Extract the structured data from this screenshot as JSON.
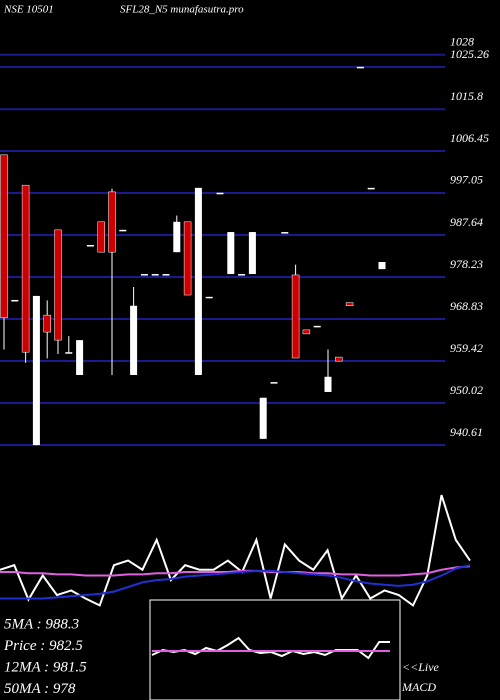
{
  "chart_data": [
    {
      "type": "candlestick",
      "subtitle": "NSE 10501",
      "title": "SFL28_N5 munafasutra.pro",
      "ylim": [
        939.5,
        1031.31
      ],
      "yticks": [
        1028,
        1025.26,
        1015.8,
        1006.45,
        997.05,
        987.64,
        978.23,
        968.83,
        959.42,
        950.02,
        940.61
      ],
      "grid": true,
      "grid_color": "#1a1a8c",
      "up_color": "#ffffff",
      "down_color": "#cc0000",
      "open": [
        1005.6,
        973.1,
        998.8,
        940.6,
        969.7,
        988.8,
        961.4,
        956.3,
        985.4,
        990.6,
        997.3,
        988.8,
        956.3,
        978.9,
        978.9,
        978.9,
        983.8,
        990.6,
        956.3,
        973.8,
        997.1,
        978.9,
        978.9,
        978.9,
        942.0,
        954.7,
        988.3,
        978.7,
        966.4,
        967.3,
        952.5,
        960.3,
        972.5,
        1025.3,
        998.2,
        980.0
      ],
      "high": [
        1005.6,
        973.1,
        998.8,
        974.0,
        973.0,
        988.8,
        965.0,
        964.1,
        985.4,
        990.6,
        998.0,
        988.8,
        976.0,
        978.9,
        978.9,
        978.9,
        992.0,
        990.6,
        998.2,
        973.8,
        997.1,
        988.3,
        978.9,
        988.3,
        951.2,
        954.7,
        988.3,
        981.0,
        966.4,
        967.3,
        962.0,
        960.3,
        972.5,
        1025.3,
        998.2,
        981.6
      ],
      "low": [
        962.0,
        973.1,
        959.0,
        940.6,
        960.0,
        961.0,
        961.4,
        956.3,
        985.4,
        983.8,
        956.3,
        988.8,
        956.3,
        978.9,
        978.9,
        978.9,
        983.8,
        974.2,
        956.3,
        973.8,
        997.1,
        978.9,
        978.9,
        978.9,
        942.0,
        954.7,
        988.3,
        960.1,
        965.5,
        967.3,
        952.5,
        959.4,
        971.8,
        1025.3,
        998.2,
        980.0
      ],
      "close": [
        969.1,
        973.1,
        961.4,
        974.0,
        965.9,
        964.1,
        961.4,
        964.1,
        985.4,
        983.8,
        983.8,
        988.8,
        971.8,
        978.9,
        978.9,
        978.9,
        990.6,
        974.2,
        998.2,
        973.8,
        997.1,
        988.3,
        978.9,
        988.3,
        951.2,
        954.7,
        988.3,
        960.1,
        965.5,
        967.3,
        955.9,
        959.4,
        971.8,
        1025.3,
        998.2,
        981.6
      ]
    },
    {
      "type": "line",
      "ylim": [
        0,
        100
      ],
      "annotations": [
        "5MA : 988.3",
        "Price : 982.5",
        "12MA : 981.5",
        "50MA : 978"
      ],
      "series": [
        {
          "color": "#ffffff",
          "values": [
            35,
            39,
            9,
            30,
            13,
            17,
            10,
            4,
            39,
            43,
            35,
            61,
            26,
            39,
            35,
            35,
            43,
            33,
            61,
            10,
            57,
            43,
            35,
            52,
            10,
            30,
            10,
            17,
            13,
            4,
            30,
            100,
            61,
            43
          ]
        },
        {
          "color": "#e060e0",
          "values": [
            33,
            33,
            32,
            32,
            31,
            31,
            30,
            30,
            30,
            31,
            31,
            32,
            32,
            33,
            33,
            33,
            33,
            34,
            34,
            33,
            33,
            33,
            32,
            32,
            31,
            31,
            30,
            30,
            30,
            31,
            32,
            35,
            37,
            38
          ]
        },
        {
          "color": "#2030d0",
          "values": [
            10,
            10,
            10,
            10,
            11,
            12,
            13,
            14,
            16,
            20,
            24,
            26,
            27,
            29,
            30,
            31,
            32,
            33,
            34,
            34,
            33,
            32,
            31,
            30,
            28,
            25,
            23,
            22,
            21,
            22,
            25,
            30,
            36,
            39
          ]
        }
      ]
    },
    {
      "type": "line",
      "title": "MACD",
      "subtitle": "<<Live",
      "ylim": [
        0,
        100
      ],
      "series": [
        {
          "color": "#ffffff",
          "values": [
            45,
            50,
            48,
            50,
            46,
            52,
            49,
            55,
            62,
            50,
            47,
            48,
            44,
            49,
            46,
            48,
            45,
            50,
            50,
            50,
            42,
            58,
            58
          ]
        },
        {
          "color": "#e060e0",
          "values": [
            49,
            49,
            49,
            49,
            49,
            49,
            49,
            49,
            49,
            49,
            49,
            49,
            49,
            49,
            49,
            49,
            49,
            49,
            49,
            49,
            49,
            49,
            49
          ]
        }
      ]
    }
  ]
}
